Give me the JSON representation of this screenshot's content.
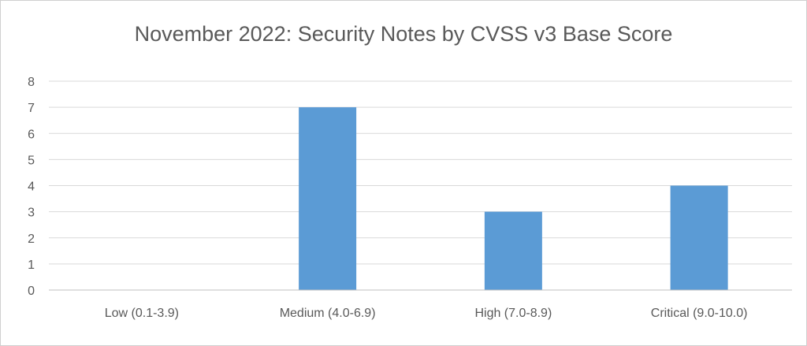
{
  "chart_data": {
    "type": "bar",
    "title": "November 2022: Security Notes by CVSS v3 Base Score",
    "categories": [
      "Low (0.1-3.9)",
      "Medium (4.0-6.9)",
      "High (7.0-8.9)",
      "Critical (9.0-10.0)"
    ],
    "values": [
      0,
      7,
      3,
      4
    ],
    "ylim": [
      0,
      8
    ],
    "yticks": [
      "0",
      "1",
      "2",
      "3",
      "4",
      "5",
      "6",
      "7",
      "8"
    ],
    "xlabel": "",
    "ylabel": "",
    "grid": true,
    "bar_color": "#5b9bd5"
  }
}
